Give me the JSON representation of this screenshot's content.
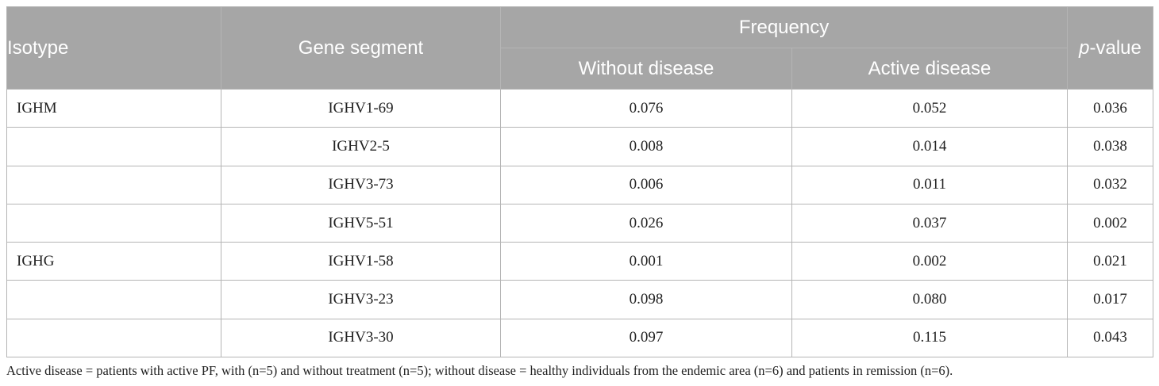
{
  "table": {
    "headers": {
      "isotype": "Isotype",
      "gene_segment": "Gene segment",
      "frequency": "Frequency",
      "without_disease": "Without disease",
      "active_disease": "Active disease",
      "p_value_italic": "p",
      "p_value_rest": "-value"
    },
    "rows": [
      {
        "isotype": "IGHM",
        "gene": "IGHV1-69",
        "without": "0.076",
        "active": "0.052",
        "p": "0.036"
      },
      {
        "isotype": "",
        "gene": "IGHV2-5",
        "without": "0.008",
        "active": "0.014",
        "p": "0.038"
      },
      {
        "isotype": "",
        "gene": "IGHV3-73",
        "without": "0.006",
        "active": "0.011",
        "p": "0.032"
      },
      {
        "isotype": "",
        "gene": "IGHV5-51",
        "without": "0.026",
        "active": "0.037",
        "p": "0.002"
      },
      {
        "isotype": "IGHG",
        "gene": "IGHV1-58",
        "without": "0.001",
        "active": "0.002",
        "p": "0.021"
      },
      {
        "isotype": "",
        "gene": "IGHV3-23",
        "without": "0.098",
        "active": "0.080",
        "p": "0.017"
      },
      {
        "isotype": "",
        "gene": "IGHV3-30",
        "without": "0.097",
        "active": "0.115",
        "p": "0.043"
      }
    ]
  },
  "footnote": "Active disease = patients with active PF, with (n=5) and without treatment (n=5); without disease = healthy individuals from the endemic area (n=6) and patients in remission (n=6).",
  "colors": {
    "header_bg": "#a6a6a6",
    "header_text": "#ffffff",
    "border": "#b5b5b5"
  }
}
